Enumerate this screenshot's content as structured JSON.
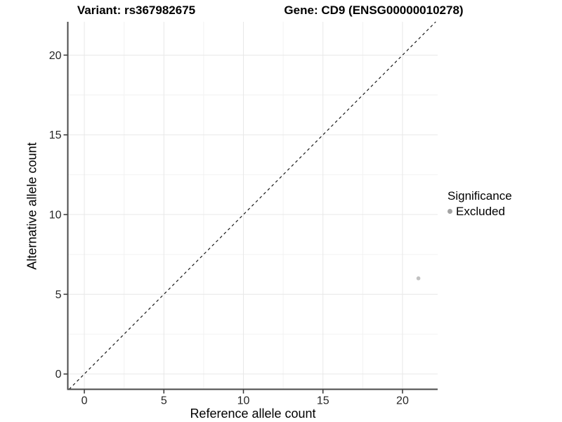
{
  "header": {
    "left_title": "Variant: rs367982675",
    "right_title": "Gene: CD9 (ENSG00000010278)"
  },
  "chart_data": {
    "type": "scatter",
    "title": "Variant: rs367982675   Gene: CD9 (ENSG00000010278)",
    "xlabel": "Reference allele count",
    "ylabel": "Alternative allele count",
    "xlim": [
      -1.04,
      22.21
    ],
    "ylim": [
      -0.96,
      22.09
    ],
    "x_ticks": [
      0,
      5,
      10,
      15,
      20
    ],
    "y_ticks": [
      0,
      5,
      10,
      15,
      20
    ],
    "x_minor_ticks": [
      2.5,
      7.5,
      12.5,
      17.5
    ],
    "y_minor_ticks": [
      2.5,
      7.5,
      12.5,
      17.5
    ],
    "grid": "major+minor on white background",
    "identity_line": {
      "slope": 1,
      "intercept": 0,
      "style": "dashed",
      "color": "#1a1a1a"
    },
    "points": [
      {
        "x": 21,
        "y": 6,
        "series": "Excluded",
        "color": "#c1c1c1",
        "radius": 2.8
      }
    ],
    "legend": {
      "title": "Significance",
      "position": "right-middle",
      "items": [
        {
          "label": "Excluded",
          "color": "#a3a3a3"
        }
      ]
    },
    "colors": {
      "grid_major": "#e8e8e8",
      "grid_minor": "#f2f2f2",
      "axis_line": "#4a4a4a",
      "tick": "#333333",
      "tick_label": "#262626"
    }
  }
}
